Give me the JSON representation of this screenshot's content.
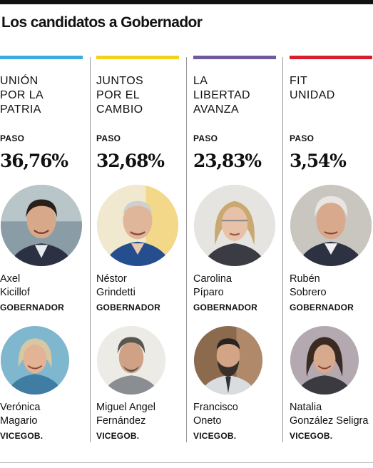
{
  "title": "Los candidatos a Gobernador",
  "columns": [
    {
      "party_lines": [
        "UNIÓN",
        "POR LA",
        "PATRIA"
      ],
      "accent_color": "#3aaee0",
      "paso_label": "PASO",
      "percentage": "36,76%",
      "governor": {
        "name_lines": [
          "Axel",
          "Kicillof"
        ],
        "role": "GOBERNADOR"
      },
      "vice": {
        "name_lines": [
          "Verónica",
          "Magario"
        ],
        "role": "VICEGOB."
      }
    },
    {
      "party_lines": [
        "JUNTOS",
        "POR EL",
        "CAMBIO"
      ],
      "accent_color": "#f2d21b",
      "paso_label": "PASO",
      "percentage": "32,68%",
      "governor": {
        "name_lines": [
          "Néstor",
          "Grindetti"
        ],
        "role": "GOBERNADOR"
      },
      "vice": {
        "name_lines": [
          "Miguel Angel",
          "Fernández"
        ],
        "role": "VICEGOB."
      }
    },
    {
      "party_lines": [
        "LA",
        "LIBERTAD",
        "AVANZA"
      ],
      "accent_color": "#6f5a9e",
      "paso_label": "PASO",
      "percentage": "23,83%",
      "governor": {
        "name_lines": [
          "Carolina",
          "Píparo"
        ],
        "role": "GOBERNADOR"
      },
      "vice": {
        "name_lines": [
          "Francisco",
          "Oneto"
        ],
        "role": "VICEGOB."
      }
    },
    {
      "party_lines": [
        "FIT",
        "UNIDAD"
      ],
      "accent_color": "#d81e2c",
      "paso_label": "PASO",
      "percentage": "3,54%",
      "governor": {
        "name_lines": [
          "Rubén",
          "Sobrero"
        ],
        "role": "GOBERNADOR"
      },
      "vice": {
        "name_lines": [
          "Natalia",
          "González Seligra"
        ],
        "role": "VICEGOB."
      }
    }
  ]
}
